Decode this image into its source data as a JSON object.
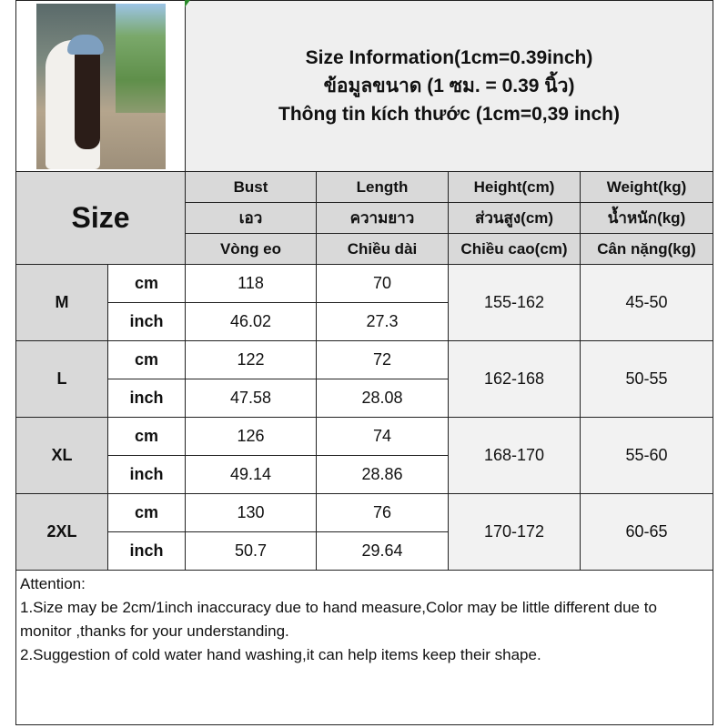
{
  "title": {
    "line1": "Size Information(1cm=0.39inch)",
    "line2": "ข้อมูลขนาด (1 ซม. = 0.39 นิ้ว)",
    "line3": "Thông tin kích thước (1cm=0,39 inch)"
  },
  "size_label": "Size",
  "columns": [
    {
      "en": "Bust",
      "th": "เอว",
      "vi": "Vòng eo"
    },
    {
      "en": "Length",
      "th": "ความยาว",
      "vi": "Chiều dài"
    },
    {
      "en": "Height(cm)",
      "th": "ส่วนสูง(cm)",
      "vi": "Chiều cao(cm)"
    },
    {
      "en": "Weight(kg)",
      "th": "น้ำหนัก(kg)",
      "vi": "Cân nặng(kg)"
    }
  ],
  "units": {
    "cm": "cm",
    "inch": "inch"
  },
  "sizes": [
    {
      "size": "M",
      "bust_cm": "118",
      "length_cm": "70",
      "bust_inch": "46.02",
      "length_inch": "27.3",
      "height": "155-162",
      "weight": "45-50"
    },
    {
      "size": "L",
      "bust_cm": "122",
      "length_cm": "72",
      "bust_inch": "47.58",
      "length_inch": "28.08",
      "height": "162-168",
      "weight": "50-55"
    },
    {
      "size": "XL",
      "bust_cm": "126",
      "length_cm": "74",
      "bust_inch": "49.14",
      "length_inch": "28.86",
      "height": "168-170",
      "weight": "55-60"
    },
    {
      "size": "2XL",
      "bust_cm": "130",
      "length_cm": "76",
      "bust_inch": "50.7",
      "length_inch": "29.64",
      "height": "170-172",
      "weight": "60-65"
    }
  ],
  "notes": {
    "heading": "Attention:",
    "items": [
      "1.Size may be 2cm/1inch inaccuracy due to hand measure,Color may be little different due to monitor ,thanks for your understanding.",
      "2.Suggestion of cold water hand washing,it can help items keep their shape."
    ]
  }
}
